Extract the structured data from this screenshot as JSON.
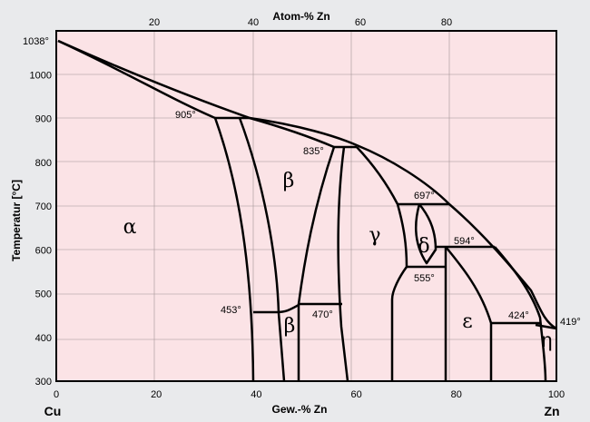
{
  "figure": {
    "top_axis_title": "Atom-% Zn",
    "bottom_axis_title": "Gew.-% Zn",
    "y_axis_title": "Temperatur [°C]",
    "left_element": "Cu",
    "right_element": "Zn",
    "colors": {
      "plot_bg": "#fbe3e6",
      "page_bg": "#e9eaec",
      "line": "#000000"
    }
  },
  "axes": {
    "x_ticks": [
      0,
      20,
      40,
      60,
      80,
      100
    ],
    "x_ticks_visible": [
      "0",
      "20",
      "40",
      "60",
      "80",
      "100"
    ],
    "top_ticks": [
      "20",
      "40",
      "60",
      "80"
    ],
    "y_ticks": [
      "300",
      "400",
      "500",
      "600",
      "700",
      "800",
      "900",
      "1000"
    ],
    "y_range": [
      300,
      1100
    ],
    "x_range": [
      0,
      100
    ]
  },
  "phases": {
    "alpha": "α",
    "beta": "β",
    "beta_low": "β",
    "gamma": "γ",
    "delta": "δ",
    "epsilon": "ε",
    "eta": "η"
  },
  "temperature_labels": {
    "cu_melting": "1038°",
    "t905": "905°",
    "t835": "835°",
    "t697": "697°",
    "t594": "594°",
    "t555": "555°",
    "t453": "453°",
    "t470": "470°",
    "t424": "424°",
    "t419": "419°"
  }
}
